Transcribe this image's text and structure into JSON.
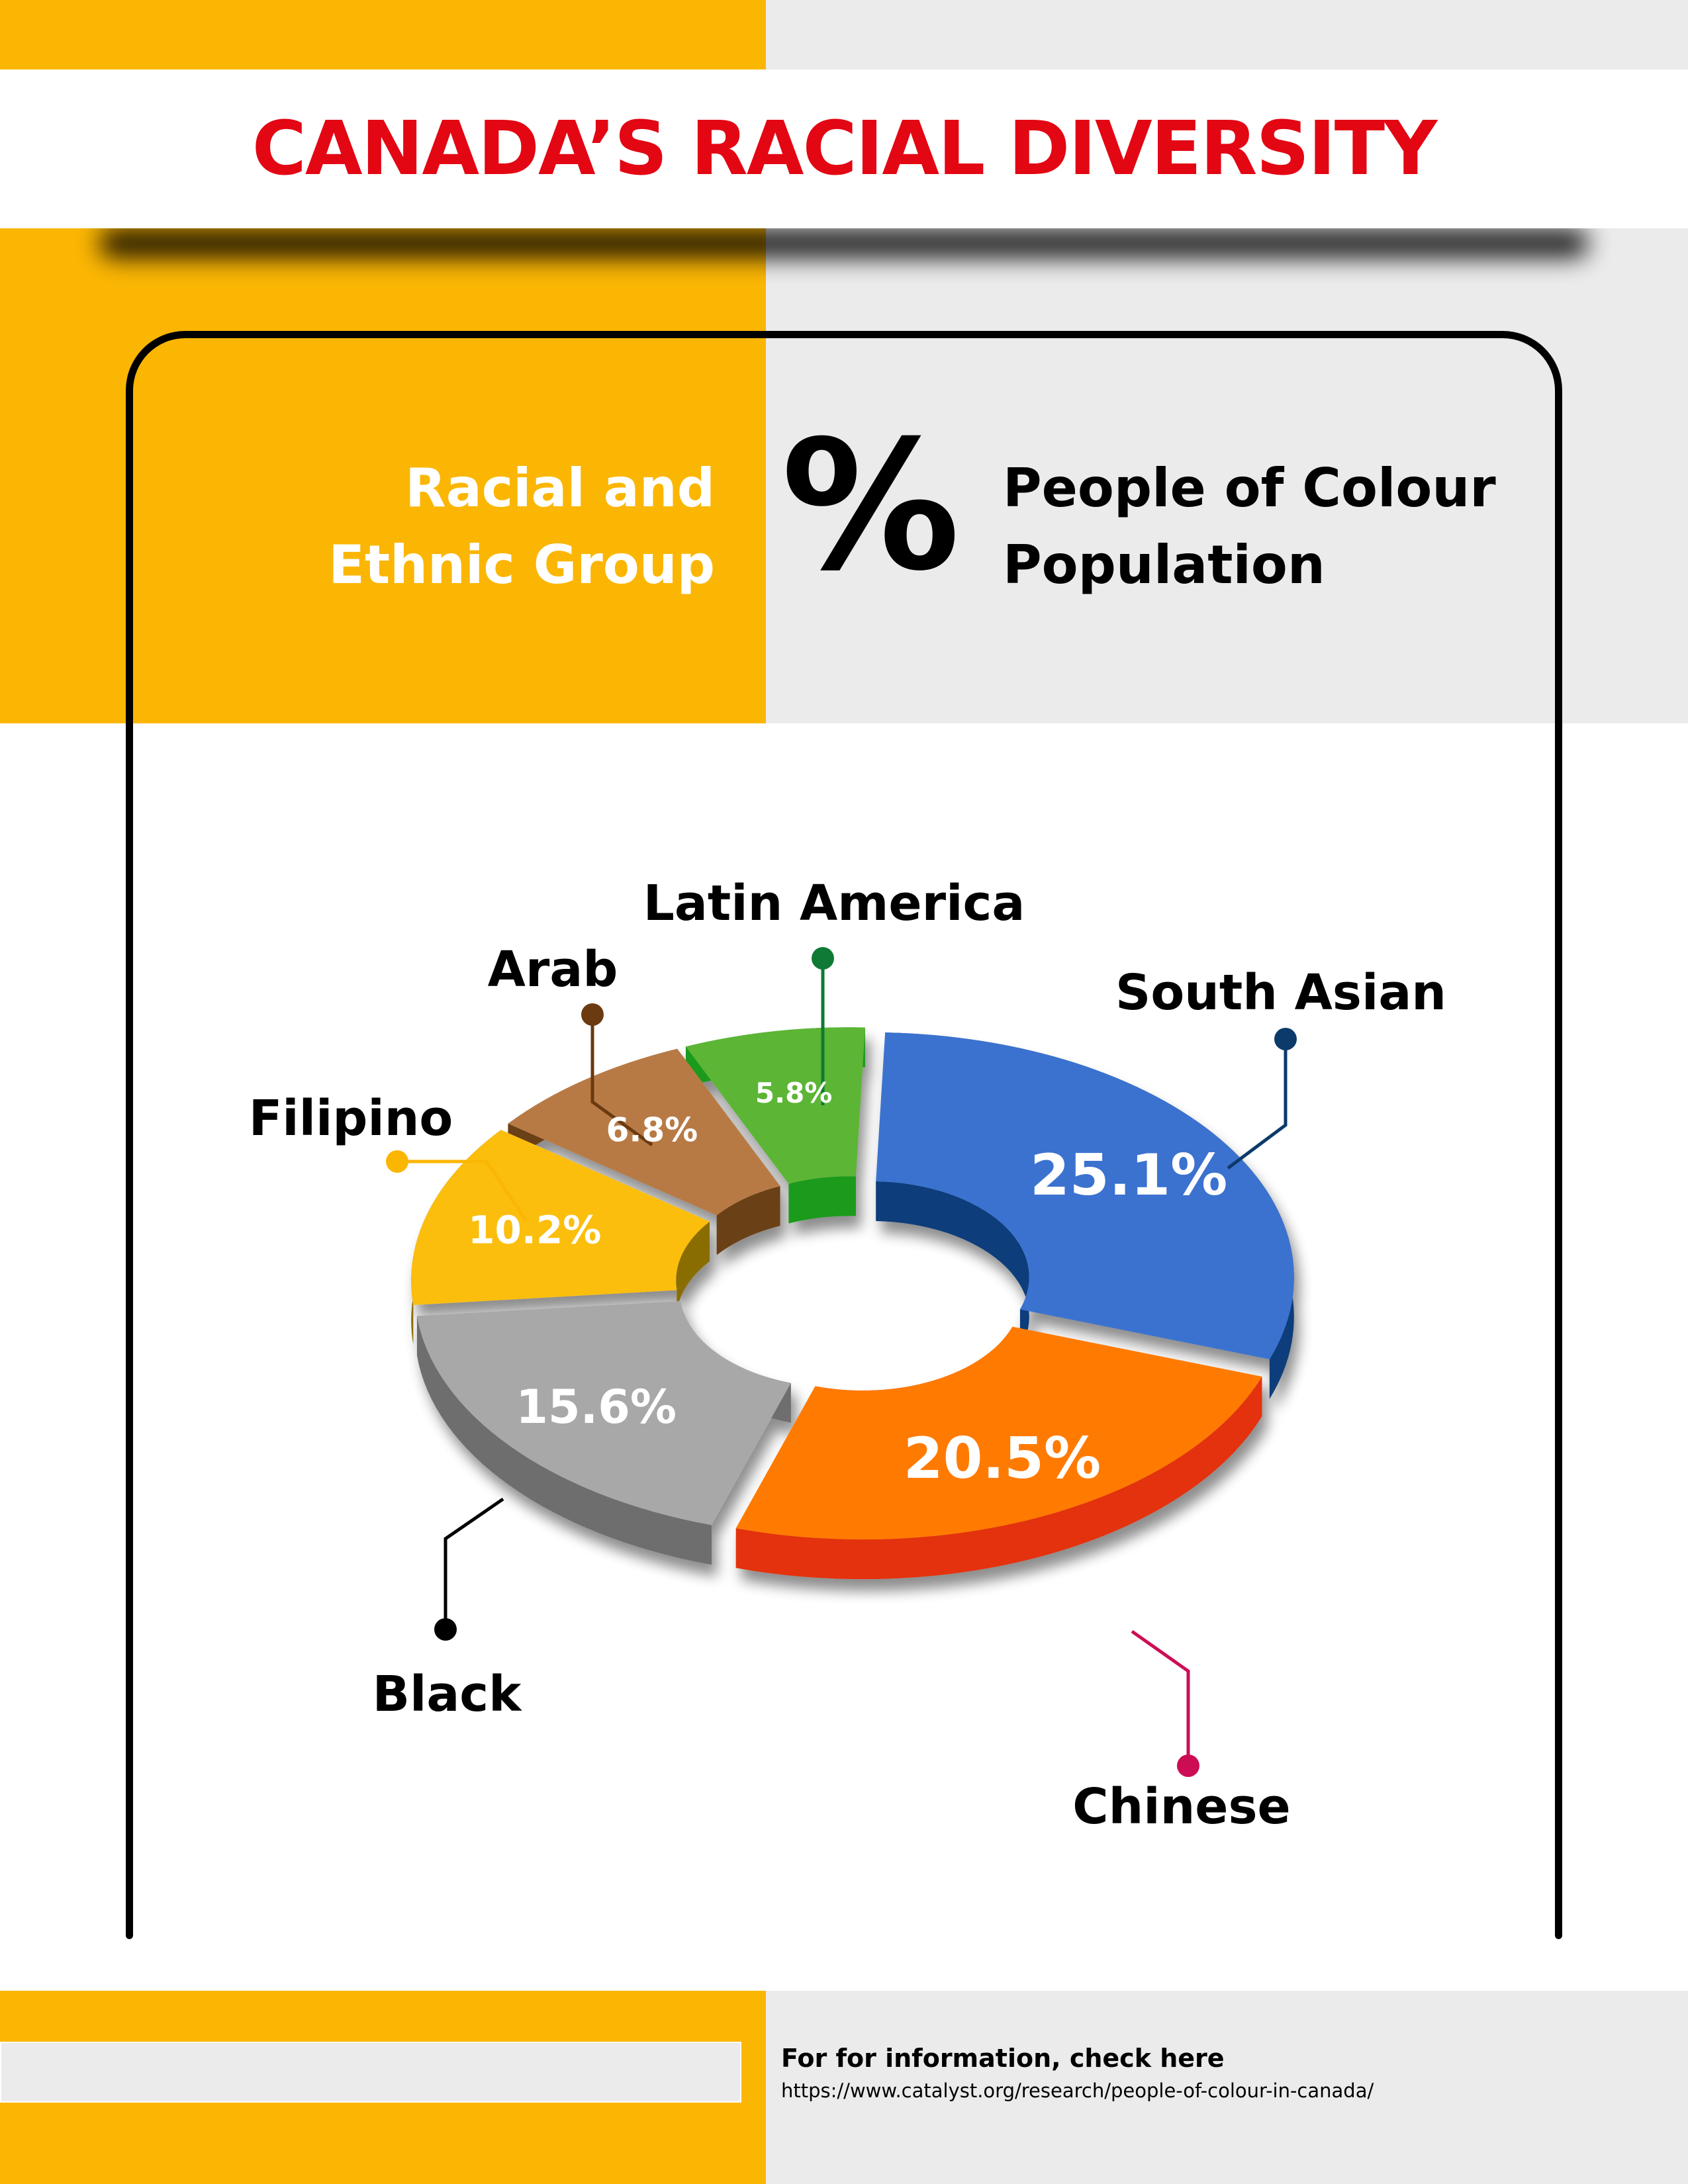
{
  "title": "CANADA’S RACIAL DIVERSITY",
  "header": {
    "left_line1": "Racial and",
    "left_line2": "Ethnic Group",
    "percent_symbol": "%",
    "right_line1": "People of Colour",
    "right_line2": "Population"
  },
  "colors": {
    "accent_yellow": "#fbb604",
    "title_red": "#e30613",
    "panel_grey": "#ebebeb"
  },
  "chart_data": {
    "type": "pie",
    "title": "",
    "categories": [
      "South Asian",
      "Chinese",
      "Black",
      "Filipino",
      "Arab",
      "Latin America"
    ],
    "values": [
      25.1,
      20.5,
      15.6,
      10.2,
      6.8,
      5.8
    ],
    "value_labels": [
      "25.1%",
      "20.5%",
      "15.6%",
      "10.2%",
      "6.8%",
      "5.8%"
    ],
    "colors": [
      "#3b72cf",
      "#ff7a00",
      "#a8a8a8",
      "#fbbe0a",
      "#b87a44",
      "#5cb536"
    ],
    "side_colors": [
      "#0d3c7a",
      "#e3300a",
      "#6e6e6e",
      "#8a6d00",
      "#6b3f17",
      "#1f9a1f"
    ],
    "leader_colors": [
      "#0b3a6b",
      "#cc0d55",
      "#000000",
      "#fbb604",
      "#6b3a10",
      "#0f7a35"
    ],
    "style": "exploded 3D donut"
  },
  "footer": {
    "heading": "For for information, check here",
    "url": "https://www.catalyst.org/research/people-of-colour-in-canada/"
  }
}
